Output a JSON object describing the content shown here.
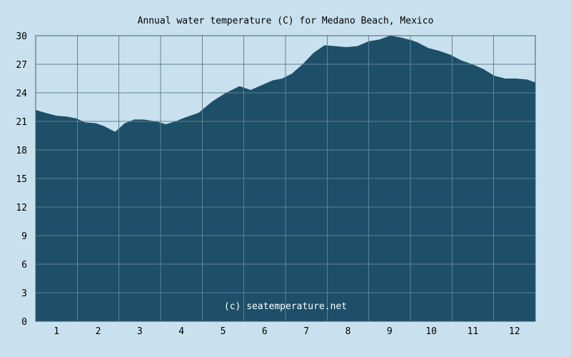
{
  "chart_data": {
    "type": "area",
    "title": "Annual water temperature (C) for Medano Beach, Mexico",
    "xlabel": "",
    "ylabel": "",
    "watermark": "(c) seatemperature.net",
    "x_categories": [
      "1",
      "2",
      "3",
      "4",
      "5",
      "6",
      "7",
      "8",
      "9",
      "10",
      "11",
      "12"
    ],
    "yticks": [
      0,
      3,
      6,
      9,
      12,
      15,
      18,
      21,
      24,
      27,
      30
    ],
    "ylim": [
      0,
      30
    ],
    "xlim": [
      1,
      366
    ],
    "grid": true,
    "colors": {
      "fill": "#1d4f68",
      "grid": "#5f8296",
      "background": "#c9e1ee",
      "axis": "#3b5f73"
    },
    "series": [
      {
        "x": [
          1,
          8,
          16,
          24,
          31,
          37,
          45,
          51,
          59,
          66,
          73,
          80,
          89,
          96,
          103,
          110,
          120,
          130,
          140,
          150,
          158,
          166,
          174,
          181,
          188,
          196,
          204,
          212,
          220,
          228,
          236,
          244,
          252,
          260,
          268,
          276,
          280,
          288,
          296,
          304,
          312,
          320,
          328,
          336,
          344,
          352,
          360,
          366
        ],
        "y": [
          22.2,
          21.9,
          21.6,
          21.5,
          21.3,
          20.9,
          20.8,
          20.5,
          19.9,
          20.8,
          21.2,
          21.2,
          21.0,
          20.7,
          21.0,
          21.4,
          21.9,
          23.1,
          24.0,
          24.7,
          24.3,
          24.8,
          25.3,
          25.5,
          26.0,
          27.0,
          28.2,
          29.0,
          28.9,
          28.8,
          28.9,
          29.4,
          29.6,
          30.0,
          29.8,
          29.5,
          29.3,
          28.7,
          28.4,
          28.0,
          27.4,
          27.0,
          26.5,
          25.8,
          25.5,
          25.5,
          25.4,
          25.1
        ]
      }
    ]
  }
}
